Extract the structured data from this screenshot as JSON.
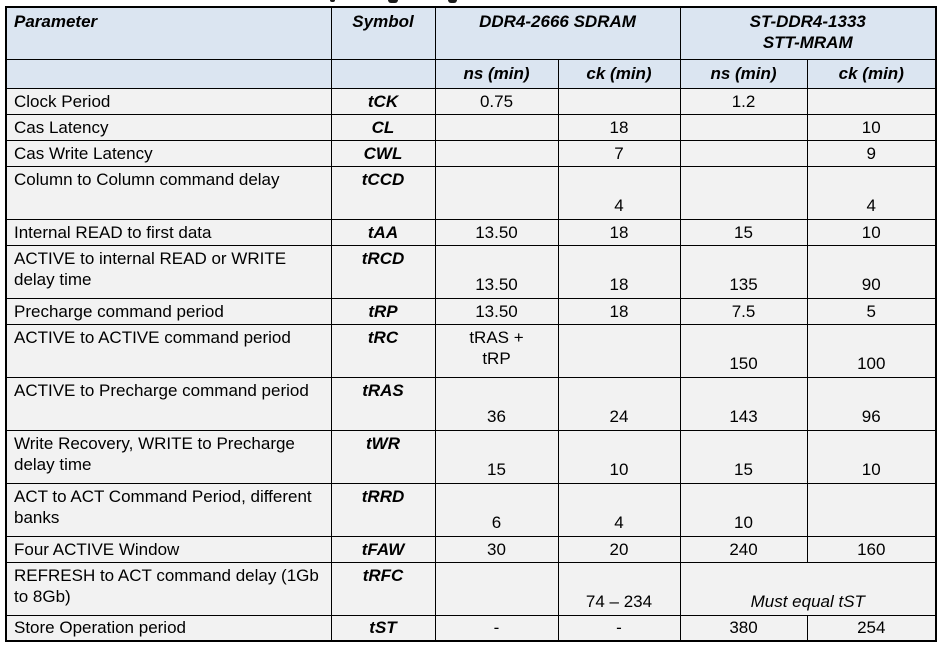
{
  "table": {
    "header_row1": {
      "parameter": "Parameter",
      "symbol": "Symbol",
      "group_ddr4": "DDR4-2666 SDRAM",
      "group_st": "ST-DDR4-1333\nSTT-MRAM"
    },
    "header_row2": {
      "ddr4_ns": "ns (min)",
      "ddr4_ck": "ck (min)",
      "st_ns": "ns (min)",
      "st_ck": "ck (min)"
    },
    "rows": [
      {
        "parameter": "Clock Period",
        "symbol": "tCK",
        "ddr4_ns": "0.75",
        "ddr4_ck": "",
        "st_ns": "1.2",
        "st_ck": "",
        "two_line": false
      },
      {
        "parameter": "Cas Latency",
        "symbol": "CL",
        "ddr4_ns": "",
        "ddr4_ck": "18",
        "st_ns": "",
        "st_ck": "10",
        "two_line": false
      },
      {
        "parameter": "Cas Write Latency",
        "symbol": "CWL",
        "ddr4_ns": "",
        "ddr4_ck": "7",
        "st_ns": "",
        "st_ck": "9",
        "two_line": false
      },
      {
        "parameter": "Column to Column command delay",
        "symbol": "tCCD",
        "ddr4_ns": "",
        "ddr4_ck": "4",
        "st_ns": "",
        "st_ck": "4",
        "two_line": true
      },
      {
        "parameter": "Internal READ to first data",
        "symbol": "tAA",
        "ddr4_ns": "13.50",
        "ddr4_ck": "18",
        "st_ns": "15",
        "st_ck": "10",
        "two_line": false
      },
      {
        "parameter": "ACTIVE to internal READ or WRITE delay time",
        "symbol": "tRCD",
        "ddr4_ns": "13.50",
        "ddr4_ck": "18",
        "st_ns": "135",
        "st_ck": "90",
        "two_line": true
      },
      {
        "parameter": "Precharge command period",
        "symbol": "tRP",
        "ddr4_ns": "13.50",
        "ddr4_ck": "18",
        "st_ns": "7.5",
        "st_ck": "5",
        "two_line": false
      },
      {
        "parameter": "ACTIVE to ACTIVE command period",
        "symbol": "tRC",
        "ddr4_ns": "tRAS +\ntRP",
        "ddr4_ck": "",
        "st_ns": "150",
        "st_ck": "100",
        "two_line": true
      },
      {
        "parameter": "ACTIVE to Precharge command period",
        "symbol": "tRAS",
        "ddr4_ns": "36",
        "ddr4_ck": "24",
        "st_ns": "143",
        "st_ck": "96",
        "two_line": true
      },
      {
        "parameter": "Write Recovery, WRITE to Precharge delay time",
        "symbol": "tWR",
        "ddr4_ns": "15",
        "ddr4_ck": "10",
        "st_ns": "15",
        "st_ck": "10",
        "two_line": true
      },
      {
        "parameter": "ACT to ACT Command Period, different banks",
        "symbol": "tRRD",
        "ddr4_ns": "6",
        "ddr4_ck": "4",
        "st_ns": "10",
        "st_ck": "",
        "two_line": true
      },
      {
        "parameter": "Four ACTIVE Window",
        "symbol": "tFAW",
        "ddr4_ns": "30",
        "ddr4_ck": "20",
        "st_ns": "240",
        "st_ck": "160",
        "two_line": false
      },
      {
        "parameter": "REFRESH to ACT command delay (1Gb to 8Gb)",
        "symbol": "tRFC",
        "ddr4_ns": "",
        "ddr4_ck": "74 – 234",
        "st_merged": "Must equal tST",
        "two_line": true
      },
      {
        "parameter": "Store Operation period",
        "symbol": "tST",
        "ddr4_ns": "-",
        "ddr4_ck": "-",
        "st_ns": "380",
        "st_ck": "254",
        "two_line": false
      }
    ]
  },
  "colors": {
    "header_bg": "#dbe5f1",
    "row_bg": "#f2f2f2",
    "border": "#000000",
    "text": "#000000"
  }
}
